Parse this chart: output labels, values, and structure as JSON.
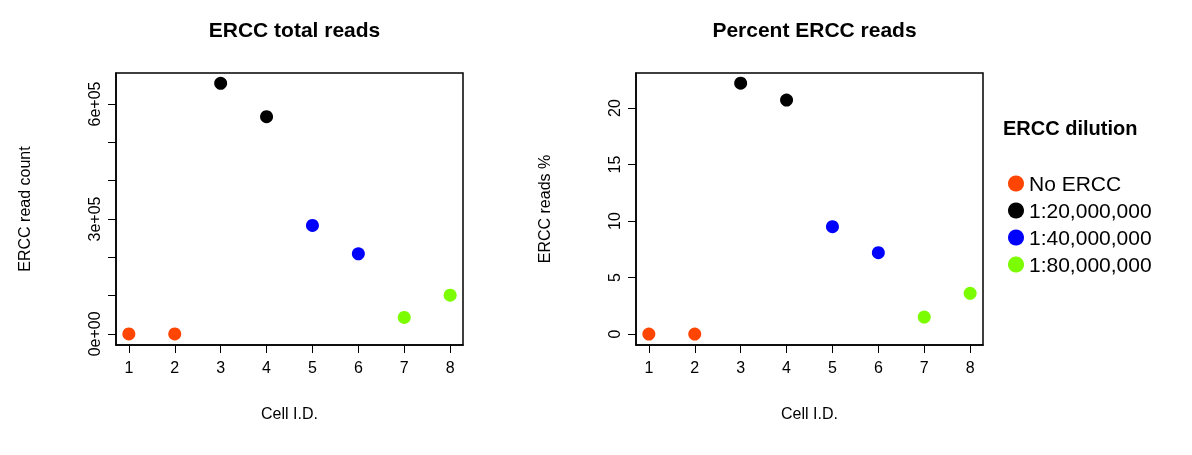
{
  "chart_data": [
    {
      "type": "scatter",
      "title": "ERCC total reads",
      "xlabel": "Cell I.D.",
      "ylabel": "ERCC read count",
      "x": [
        1,
        2,
        3,
        4,
        5,
        6,
        7,
        8
      ],
      "series": [
        {
          "color": "#ff4500",
          "values": [
            0,
            0,
            null,
            null,
            null,
            null,
            null,
            null
          ]
        },
        {
          "color": "#000000",
          "values": [
            null,
            null,
            654000,
            567000,
            null,
            null,
            null,
            null
          ]
        },
        {
          "color": "#0000ff",
          "values": [
            null,
            null,
            null,
            null,
            283000,
            209000,
            null,
            null
          ]
        },
        {
          "color": "#7cfc00",
          "values": [
            null,
            null,
            null,
            null,
            null,
            null,
            43000,
            101000
          ]
        }
      ],
      "xlim": [
        0.72,
        8.28
      ],
      "xticks": [
        1,
        2,
        3,
        4,
        5,
        6,
        7,
        8
      ],
      "ylim": [
        -29000,
        681000
      ],
      "yticks": [
        {
          "value": 0,
          "label": "0e+00"
        },
        {
          "value": 100000,
          "label": null
        },
        {
          "value": 200000,
          "label": null
        },
        {
          "value": 300000,
          "label": "3e+05"
        },
        {
          "value": 400000,
          "label": null
        },
        {
          "value": 500000,
          "label": null
        },
        {
          "value": 600000,
          "label": "6e+05"
        }
      ],
      "grid": false,
      "legend": false,
      "marker": "circle"
    },
    {
      "type": "scatter",
      "title": "Percent ERCC reads",
      "xlabel": "Cell I.D.",
      "ylabel": "ERCC reads %",
      "legend_title": "ERCC dilution",
      "x": [
        1,
        2,
        3,
        4,
        5,
        6,
        7,
        8
      ],
      "series": [
        {
          "name": "No ERCC",
          "color": "#ff4500",
          "values": [
            0,
            0,
            null,
            null,
            null,
            null,
            null,
            null
          ]
        },
        {
          "name": "1:20,000,000",
          "color": "#000000",
          "values": [
            null,
            null,
            22.2,
            20.7,
            null,
            null,
            null,
            null
          ]
        },
        {
          "name": "1:40,000,000",
          "color": "#0000ff",
          "values": [
            null,
            null,
            null,
            null,
            9.5,
            7.2,
            null,
            null
          ]
        },
        {
          "name": "1:80,000,000",
          "color": "#7cfc00",
          "values": [
            null,
            null,
            null,
            null,
            null,
            null,
            1.5,
            3.6
          ]
        }
      ],
      "xlim": [
        0.72,
        8.28
      ],
      "xticks": [
        1,
        2,
        3,
        4,
        5,
        6,
        7,
        8
      ],
      "ylim": [
        -0.97,
        23.1
      ],
      "yticks": [
        0,
        5,
        10,
        15,
        20
      ],
      "grid": false,
      "legend": "right",
      "marker": "circle"
    }
  ]
}
